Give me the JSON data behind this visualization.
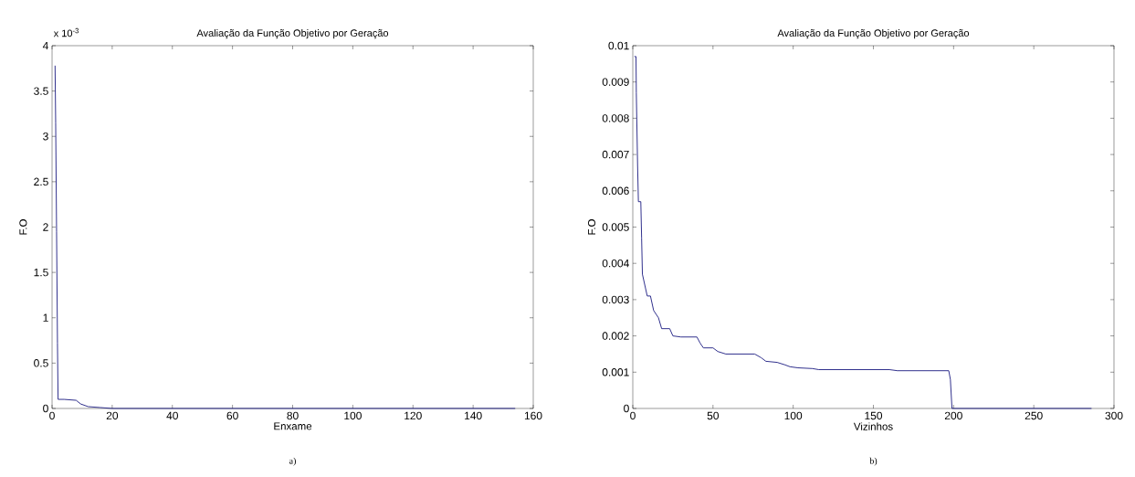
{
  "chart_data": [
    {
      "type": "line",
      "title": "Avaliação da Função Objetivo por Geração",
      "xlabel": "Enxame",
      "ylabel": "F.O",
      "annotations": [
        "x 10$^{-3}$",
        "a)"
      ],
      "color": "#1a1a80",
      "x": [
        1,
        1.2,
        1.5,
        1.8,
        2,
        4,
        8,
        9.5,
        12,
        16,
        20,
        154
      ],
      "values": [
        3.78,
        3.15,
        1.95,
        0.72,
        0.1,
        0.1,
        0.09,
        0.05,
        0.02,
        0.01,
        0,
        0
      ],
      "xlim": [
        0,
        160
      ],
      "ylim": [
        0,
        4
      ],
      "xticks": [
        0,
        20,
        40,
        60,
        80,
        100,
        120,
        140,
        160
      ],
      "yticks": [
        0,
        0.5,
        1,
        1.5,
        2,
        2.5,
        3,
        3.5,
        4
      ]
    },
    {
      "type": "line",
      "title": "Avaliação da Função Objetivo por Geração",
      "xlabel": "Vizinhos",
      "ylabel": "F.O",
      "annotations": [
        "b)"
      ],
      "color": "#1a1a80",
      "x": [
        1,
        2,
        2.2,
        3,
        3.5,
        5,
        5.5,
        6,
        8,
        9,
        11,
        12,
        13,
        16,
        18,
        23,
        25,
        30,
        40,
        42,
        44,
        50,
        53,
        58,
        76,
        80,
        83,
        90,
        95,
        98,
        103,
        112,
        116,
        160,
        165,
        197,
        198,
        199,
        286
      ],
      "values": [
        0.0097,
        0.0097,
        0.0087,
        0.0067,
        0.0057,
        0.0057,
        0.0047,
        0.0037,
        0.0033,
        0.0031,
        0.0031,
        0.0029,
        0.0027,
        0.0025,
        0.0022,
        0.0022,
        0.002,
        0.00197,
        0.00197,
        0.0018,
        0.00167,
        0.00167,
        0.00157,
        0.0015,
        0.0015,
        0.0014,
        0.0013,
        0.00127,
        0.0012,
        0.00115,
        0.00112,
        0.0011,
        0.00107,
        0.00107,
        0.00104,
        0.00104,
        0.0008,
        0,
        0
      ],
      "xlim": [
        0,
        300
      ],
      "ylim": [
        0,
        0.01
      ],
      "xticks": [
        0,
        50,
        100,
        150,
        200,
        250,
        300
      ],
      "yticks": [
        0,
        0.001,
        0.002,
        0.003,
        0.004,
        0.005,
        0.006,
        0.007,
        0.008,
        0.009,
        0.01
      ]
    }
  ]
}
